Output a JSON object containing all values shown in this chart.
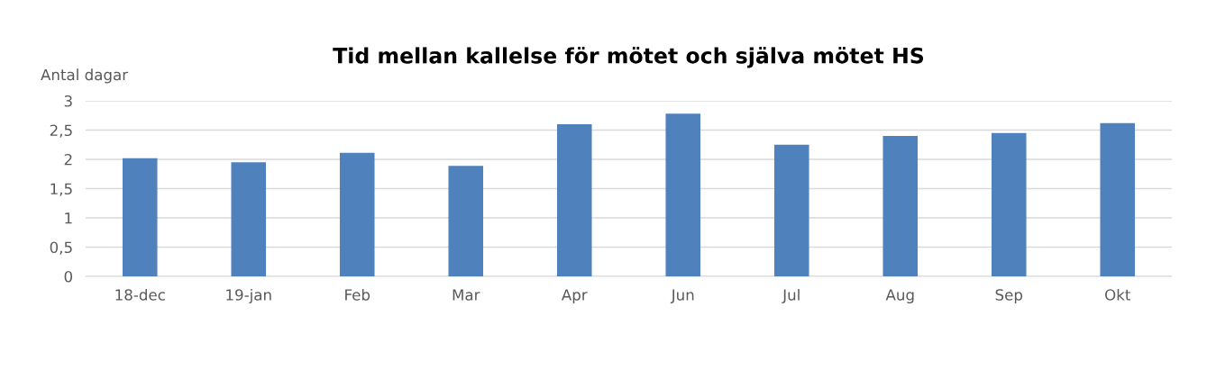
{
  "chart_data": {
    "type": "bar",
    "title": "Tid mellan kallelse för mötet och själva mötet HS",
    "ylabel": "Antal dagar",
    "categories": [
      "18-dec",
      "19-jan",
      "Feb",
      "Mar",
      "Apr",
      "Jun",
      "Jul",
      "Aug",
      "Sep",
      "Okt"
    ],
    "values": [
      2.02,
      1.95,
      2.11,
      1.89,
      2.6,
      2.78,
      2.25,
      2.4,
      2.45,
      2.62
    ],
    "color": "#4f81bd",
    "ylim": [
      0,
      3
    ],
    "yticks": [
      0,
      {
        "value": 0.5,
        "label": "0,5"
      },
      1,
      {
        "value": 1.5,
        "label": "1,5"
      },
      2,
      {
        "value": 2.5,
        "label": "2,5"
      },
      3
    ],
    "grid": "y"
  }
}
